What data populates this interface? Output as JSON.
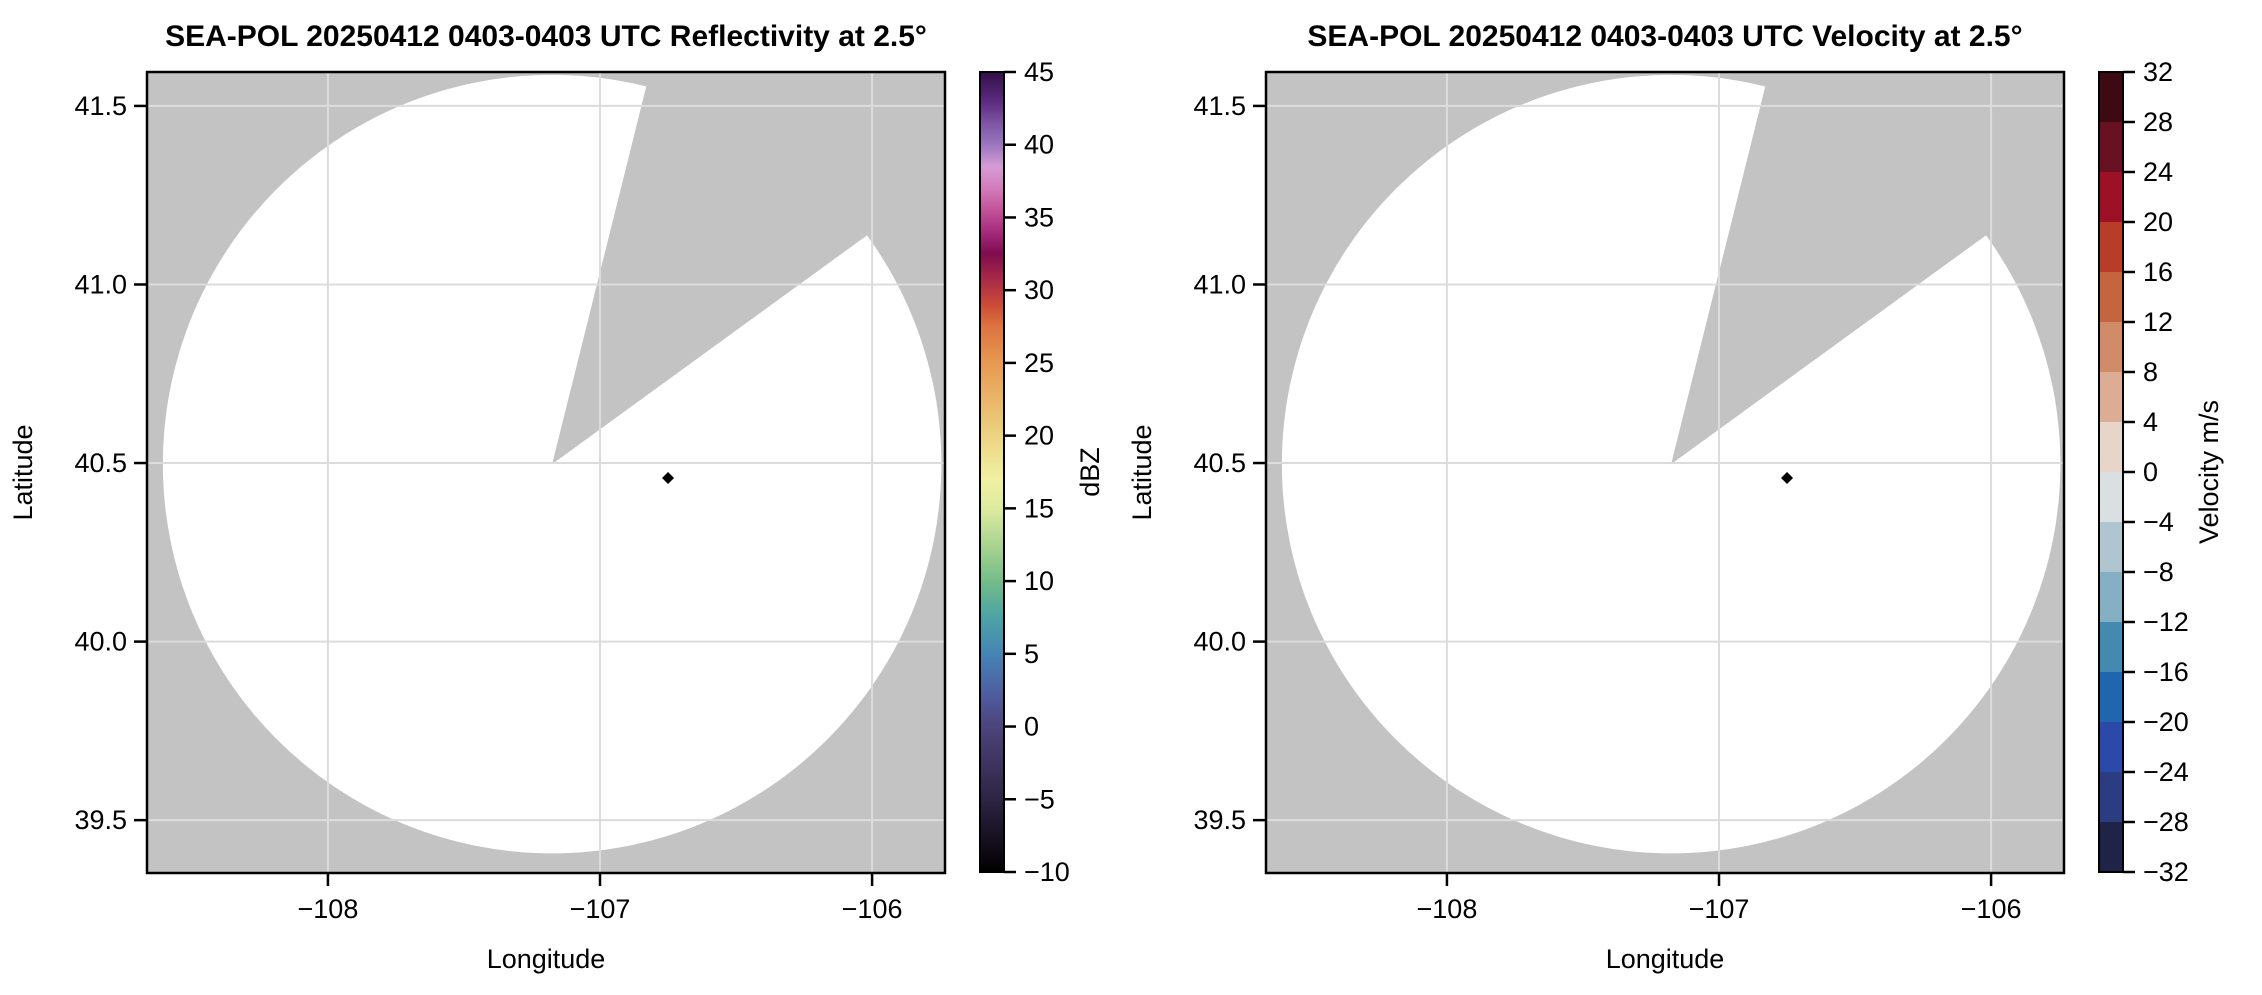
{
  "figure": {
    "background": "#ffffff",
    "masked_color": "#c3c3c3",
    "grid_color": "#dcdcdc",
    "frame_color": "#000000",
    "text_color": "#000000"
  },
  "chart_data": [
    {
      "id": "reflectivity",
      "type": "radar_ppi",
      "title": "SEA-POL 20250412 0403-0403 UTC Reflectivity at 2.5°",
      "xlabel": "Longitude",
      "ylabel": "Latitude",
      "xlim": [
        -108.665,
        -105.732
      ],
      "ylim": [
        39.352,
        41.595
      ],
      "xticks": {
        "values": [
          -108,
          -107,
          -106
        ],
        "labels": [
          "−108",
          "−107",
          "−106"
        ]
      },
      "yticks": {
        "values": [
          41.5,
          41.0,
          40.5,
          40.0,
          39.5
        ],
        "labels": [
          "41.5",
          "41.0",
          "40.5",
          "40.0",
          "39.5"
        ]
      },
      "grid": true,
      "radar": {
        "lon": -107.176,
        "lat": 40.497,
        "range_deg_lat": 1.09,
        "missing_sector_azimuth_deg": [
          14,
          54
        ]
      },
      "marker": {
        "lon": -106.75,
        "lat": 40.458,
        "shape": "diamond",
        "color": "#000000"
      },
      "colorbar": {
        "label": "dBZ",
        "style": "continuous",
        "vmin": -10,
        "vmax": 45,
        "ticks": [
          45,
          40,
          35,
          30,
          25,
          20,
          15,
          10,
          5,
          0,
          -5,
          -10
        ],
        "tick_labels": [
          "45",
          "40",
          "35",
          "30",
          "25",
          "20",
          "15",
          "10",
          "5",
          "0",
          "−5",
          "−10"
        ],
        "stops": [
          [
            -10,
            "#000000"
          ],
          [
            -8,
            "#150e1e"
          ],
          [
            -6,
            "#251d36"
          ],
          [
            -4,
            "#352b4f"
          ],
          [
            -2,
            "#413765"
          ],
          [
            0,
            "#4c447b"
          ],
          [
            2,
            "#4f5a9c"
          ],
          [
            5,
            "#4585b4"
          ],
          [
            7.5,
            "#4ba3a5"
          ],
          [
            10,
            "#74bc88"
          ],
          [
            12.5,
            "#aad492"
          ],
          [
            15,
            "#ddeb9f"
          ],
          [
            17,
            "#f1f0a3"
          ],
          [
            20,
            "#ecd382"
          ],
          [
            22.5,
            "#e9b569"
          ],
          [
            25,
            "#e79952"
          ],
          [
            27.5,
            "#dd7440"
          ],
          [
            29,
            "#cb4b37"
          ],
          [
            30.5,
            "#ad2f46"
          ],
          [
            32.5,
            "#7f0c50"
          ],
          [
            34,
            "#a62a7e"
          ],
          [
            35.5,
            "#c35399"
          ],
          [
            37,
            "#d37bbc"
          ],
          [
            38.5,
            "#d49cd5"
          ],
          [
            40,
            "#9b76be"
          ],
          [
            41.5,
            "#7e54a4"
          ],
          [
            43,
            "#5b2a7e"
          ],
          [
            45,
            "#330f4b"
          ]
        ]
      }
    },
    {
      "id": "velocity",
      "type": "radar_ppi",
      "title": "SEA-POL 20250412 0403-0403 UTC Velocity at 2.5°",
      "xlabel": "Longitude",
      "ylabel": "Latitude",
      "xlim": [
        -108.665,
        -105.732
      ],
      "ylim": [
        39.352,
        41.595
      ],
      "xticks": {
        "values": [
          -108,
          -107,
          -106
        ],
        "labels": [
          "−108",
          "−107",
          "−106"
        ]
      },
      "yticks": {
        "values": [
          41.5,
          41.0,
          40.5,
          40.0,
          39.5
        ],
        "labels": [
          "41.5",
          "41.0",
          "40.5",
          "40.0",
          "39.5"
        ]
      },
      "grid": true,
      "radar": {
        "lon": -107.176,
        "lat": 40.497,
        "range_deg_lat": 1.09,
        "missing_sector_azimuth_deg": [
          14,
          54
        ]
      },
      "marker": {
        "lon": -106.75,
        "lat": 40.458,
        "shape": "diamond",
        "color": "#000000"
      },
      "colorbar": {
        "label": "Velocity m/s",
        "style": "discrete",
        "vmin": -32,
        "vmax": 32,
        "ticks": [
          32,
          28,
          24,
          20,
          16,
          12,
          8,
          4,
          0,
          -4,
          -8,
          -12,
          -16,
          -20,
          -24,
          -28,
          -32
        ],
        "tick_labels": [
          "32",
          "28",
          "24",
          "20",
          "16",
          "12",
          "8",
          "4",
          "0",
          "−4",
          "−8",
          "−12",
          "−16",
          "−20",
          "−24",
          "−28",
          "−32"
        ],
        "colors_top_to_bottom": [
          "#3d0a14",
          "#681123",
          "#9d1127",
          "#b73d29",
          "#c46540",
          "#d08c69",
          "#dcad94",
          "#e8d5c9",
          "#dadfe1",
          "#afc6d0",
          "#85afc2",
          "#4489b0",
          "#1f66ae",
          "#2b49a8",
          "#2c3c80",
          "#1f2347"
        ]
      }
    }
  ]
}
